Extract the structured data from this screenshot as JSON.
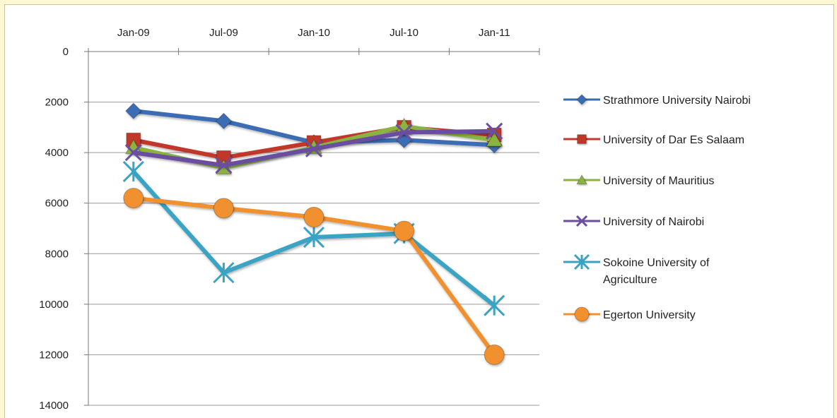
{
  "chart_data": {
    "type": "line",
    "title": "",
    "xlabel": "",
    "ylabel": "",
    "categories": [
      "Jan-09",
      "Jul-09",
      "Jan-10",
      "Jul-10",
      "Jan-11"
    ],
    "x_axis_position": "top",
    "y_reversed": true,
    "ylim": [
      0,
      14000
    ],
    "yticks": [
      0,
      2000,
      4000,
      6000,
      8000,
      10000,
      12000,
      14000
    ],
    "ytick_labels": [
      "0",
      "2000",
      "4000",
      "6000",
      "8000",
      "10000",
      "12000",
      "14000"
    ],
    "grid": true,
    "legend_position": "right",
    "series": [
      {
        "name": "Strathmore University Nairobi",
        "values": [
          2350,
          2750,
          3600,
          3500,
          3700
        ],
        "color": "#3a6cb4",
        "marker": "diamond"
      },
      {
        "name": "University of Dar Es Salaam",
        "values": [
          3500,
          4200,
          3600,
          3000,
          3300
        ],
        "color": "#c0392b",
        "marker": "square"
      },
      {
        "name": "University of Mauritius",
        "values": [
          3800,
          4600,
          3800,
          2950,
          3500
        ],
        "color": "#8ab33f",
        "marker": "triangle"
      },
      {
        "name": "University of Nairobi",
        "values": [
          4000,
          4500,
          3850,
          3200,
          3150
        ],
        "color": "#6b4ea0",
        "marker": "x"
      },
      {
        "name": "Sokoine University of Agriculture",
        "name_lines": [
          "Sokoine University of",
          "Agriculture"
        ],
        "values": [
          4750,
          8750,
          7350,
          7200,
          10050
        ],
        "color": "#3aa3c3",
        "marker": "asterisk"
      },
      {
        "name": "Egerton University",
        "values": [
          5800,
          6200,
          6550,
          7100,
          12000
        ],
        "color": "#f0902e",
        "marker": "circle"
      }
    ]
  }
}
